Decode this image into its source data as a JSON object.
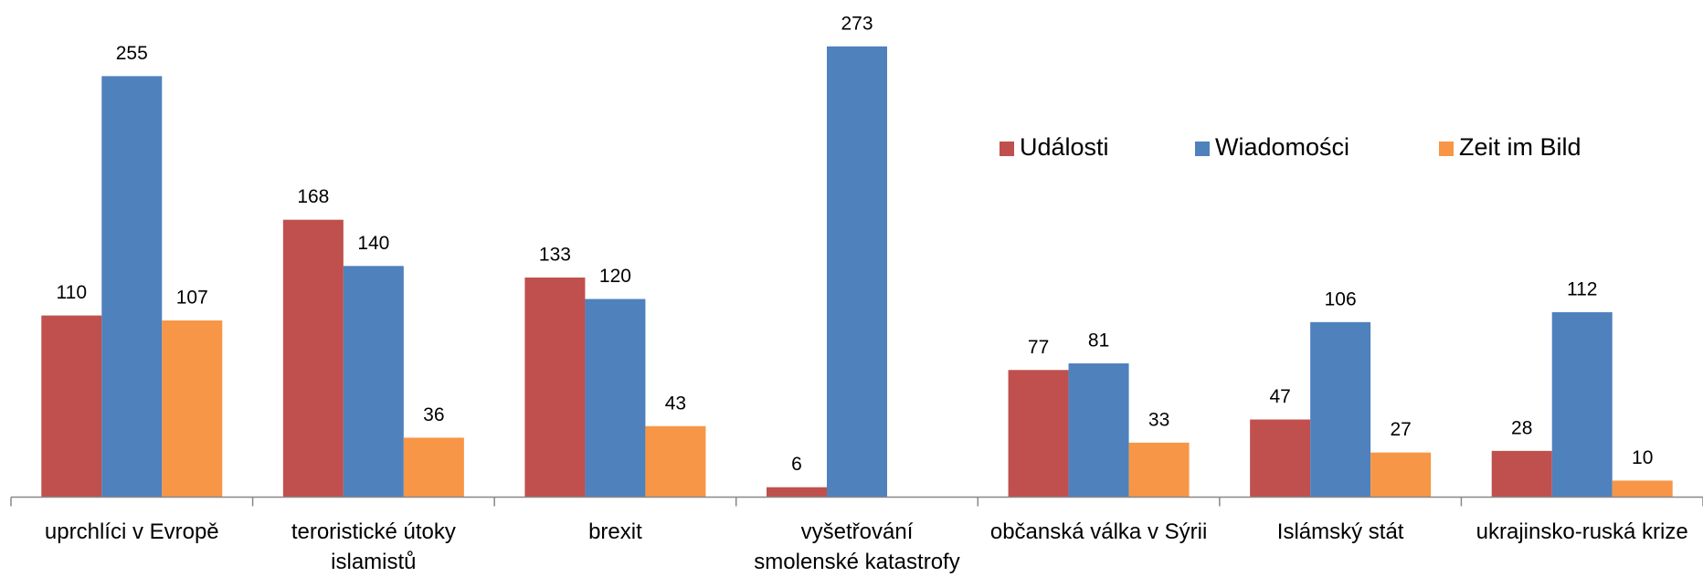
{
  "chart_data": {
    "type": "bar",
    "categories": [
      "uprchlíci v Evropě",
      "teroristické útoky\nislamistů",
      "brexit",
      "vyšetřování\nsmolenské katastrofy",
      "občanská válka v Sýrii",
      "Islámský stát",
      "ukrajinsko-ruská krize"
    ],
    "series": [
      {
        "name": "Události",
        "color": "#c0504d",
        "values": [
          110,
          168,
          133,
          6,
          77,
          47,
          28
        ]
      },
      {
        "name": "Wiadomości",
        "color": "#4f81bd",
        "values": [
          255,
          140,
          120,
          273,
          81,
          106,
          112
        ]
      },
      {
        "name": "Zeit im Bild",
        "color": "#f79646",
        "values": [
          107,
          36,
          43,
          null,
          33,
          27,
          10
        ]
      }
    ],
    "ylim": [
      0,
      300
    ],
    "legend": "upper right"
  }
}
